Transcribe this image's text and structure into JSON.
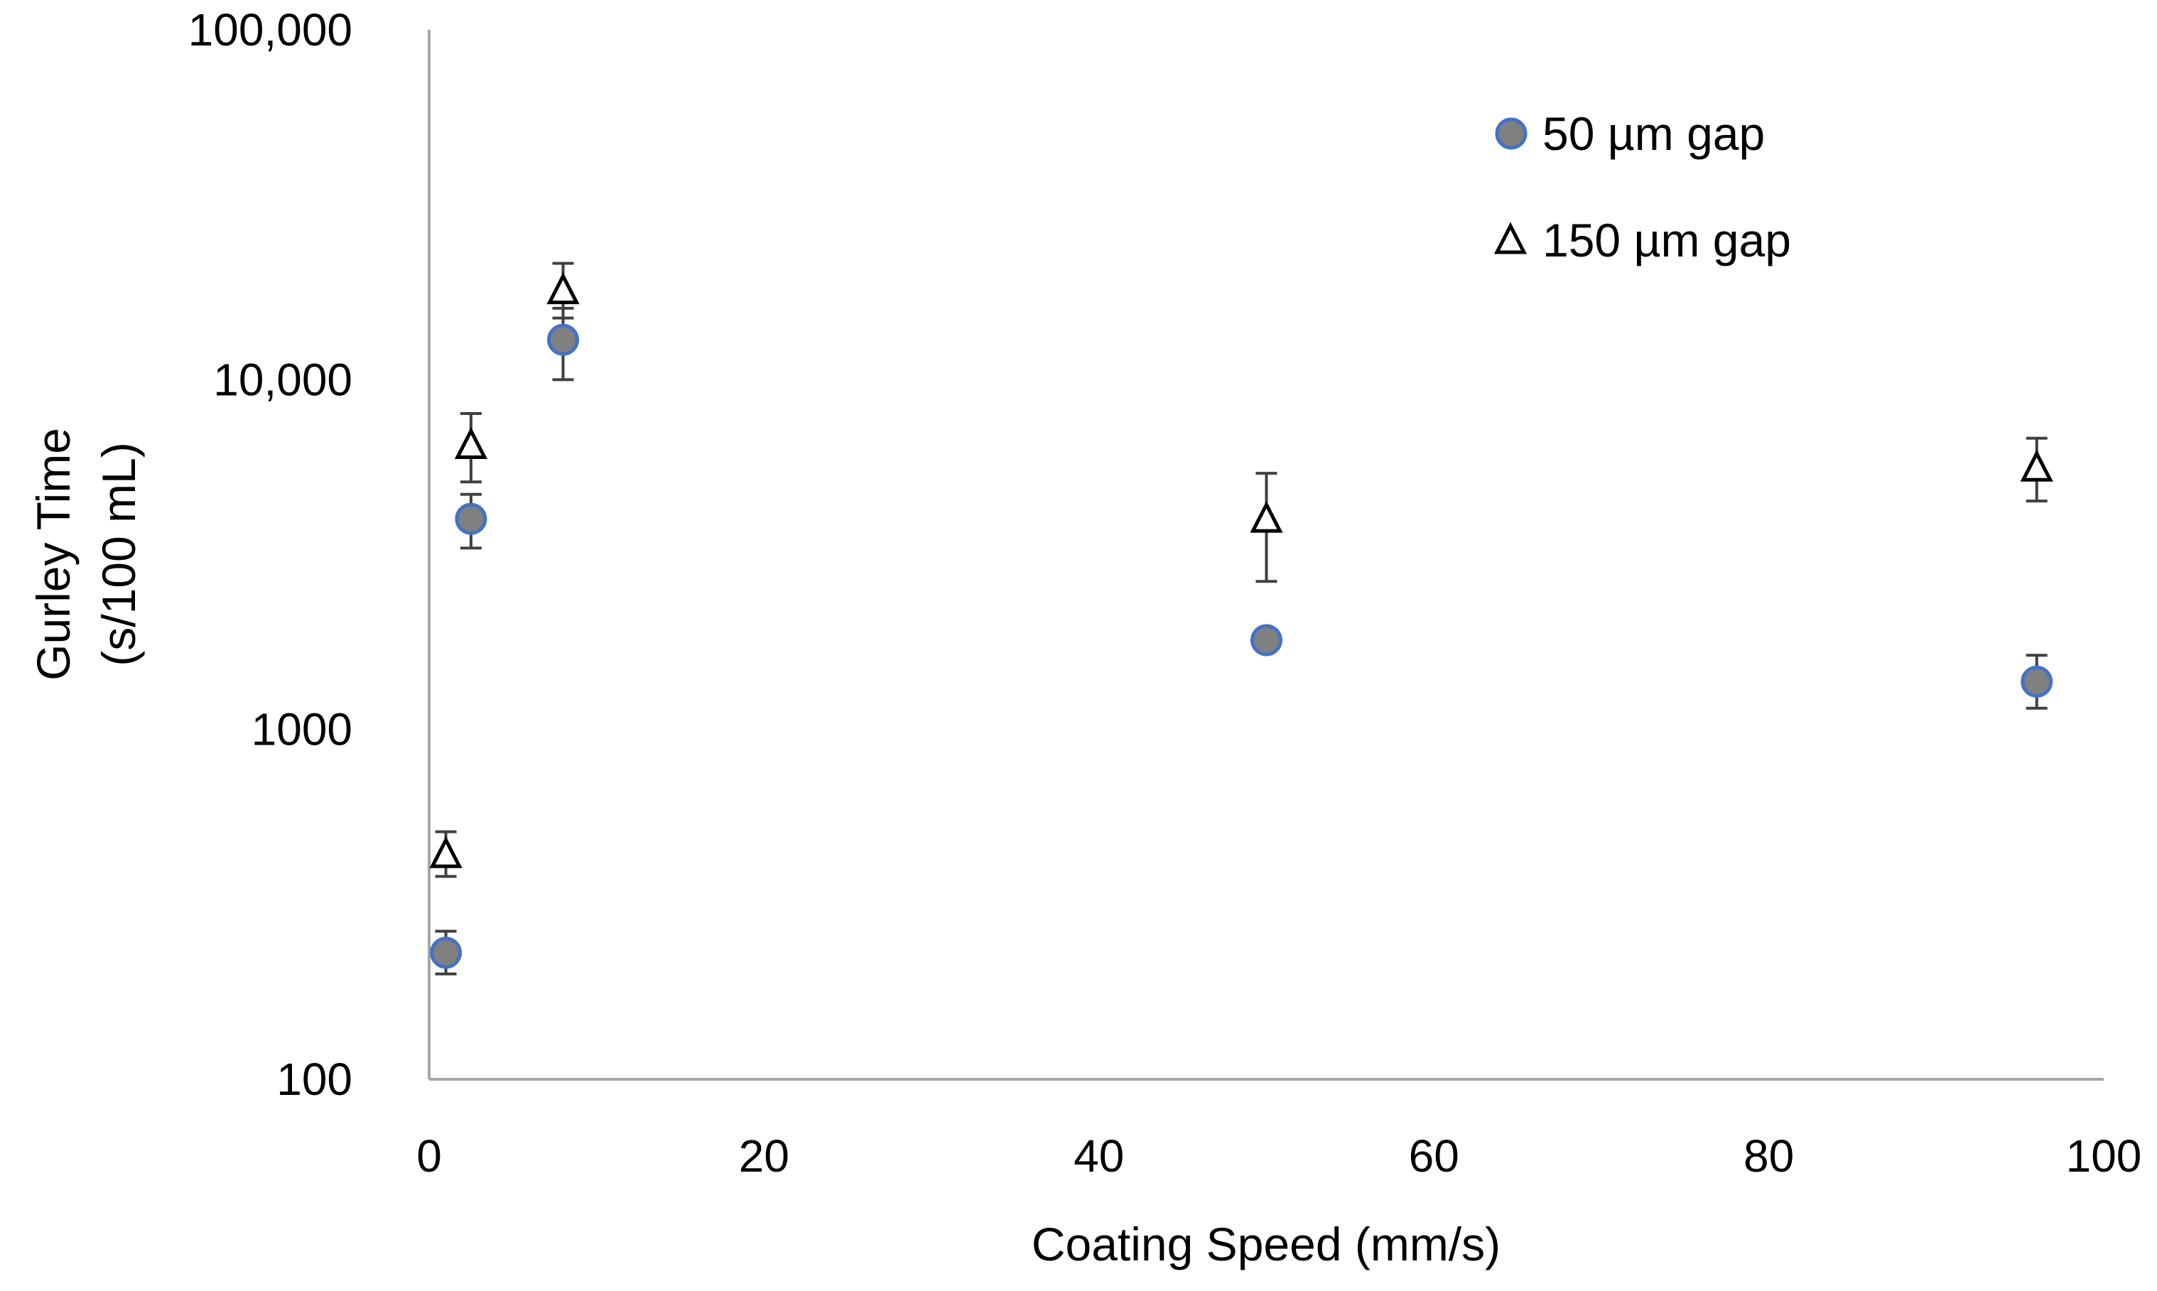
{
  "chart_data": {
    "type": "scatter",
    "title": "",
    "xlabel": "Coating Speed (mm/s)",
    "ylabel_lines": [
      "Gurley Time",
      "(s/100 mL)"
    ],
    "xlim": [
      0,
      100
    ],
    "ylim": [
      100,
      100000
    ],
    "yscale": "log",
    "x_ticks": [
      0,
      20,
      40,
      60,
      80,
      100
    ],
    "x_tick_labels": [
      "0",
      "20",
      "40",
      "60",
      "80",
      "100"
    ],
    "y_ticks": [
      100,
      1000,
      10000,
      100000
    ],
    "y_tick_labels": [
      "100",
      "1000",
      "10,000",
      "100,000"
    ],
    "grid": false,
    "legend_position": "top-right",
    "series": [
      {
        "name": "50 µm gap",
        "marker": "circle",
        "fill_color": "#808080",
        "edge_color": "#4472C4",
        "points": [
          {
            "x": 1,
            "y": 230,
            "error_low": 200,
            "error_high": 265
          },
          {
            "x": 2.5,
            "y": 4000,
            "error_low": 3300,
            "error_high": 4700
          },
          {
            "x": 8,
            "y": 13000,
            "error_low": 10000,
            "error_high": 16000
          },
          {
            "x": 50,
            "y": 1800,
            "error_low": 1800,
            "error_high": 1800
          },
          {
            "x": 96,
            "y": 1370,
            "error_low": 1150,
            "error_high": 1630
          }
        ]
      },
      {
        "name": "150 µm gap",
        "marker": "triangle-open",
        "fill_color": "#ffffff",
        "edge_color": "#000000",
        "points": [
          {
            "x": 1,
            "y": 440,
            "error_low": 380,
            "error_high": 510
          },
          {
            "x": 2.5,
            "y": 6500,
            "error_low": 5100,
            "error_high": 8000
          },
          {
            "x": 8,
            "y": 18000,
            "error_low": 15000,
            "error_high": 21500
          },
          {
            "x": 50,
            "y": 4000,
            "error_low": 2650,
            "error_high": 5400
          },
          {
            "x": 96,
            "y": 5600,
            "error_low": 4500,
            "error_high": 6800
          }
        ]
      }
    ]
  }
}
